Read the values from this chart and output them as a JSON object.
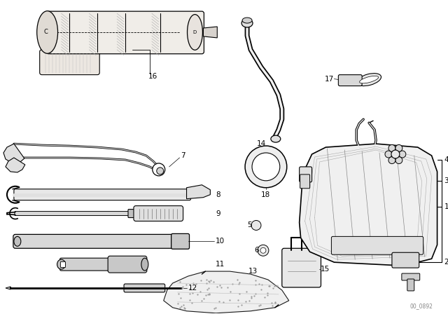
{
  "background_color": "#ffffff",
  "figure_width": 6.4,
  "figure_height": 4.48,
  "dpi": 100,
  "watermark": "00_0892",
  "black": "#000000",
  "gray_light": "#e8e8e8",
  "gray_mid": "#d0d0d0",
  "gray_dark": "#aaaaaa"
}
